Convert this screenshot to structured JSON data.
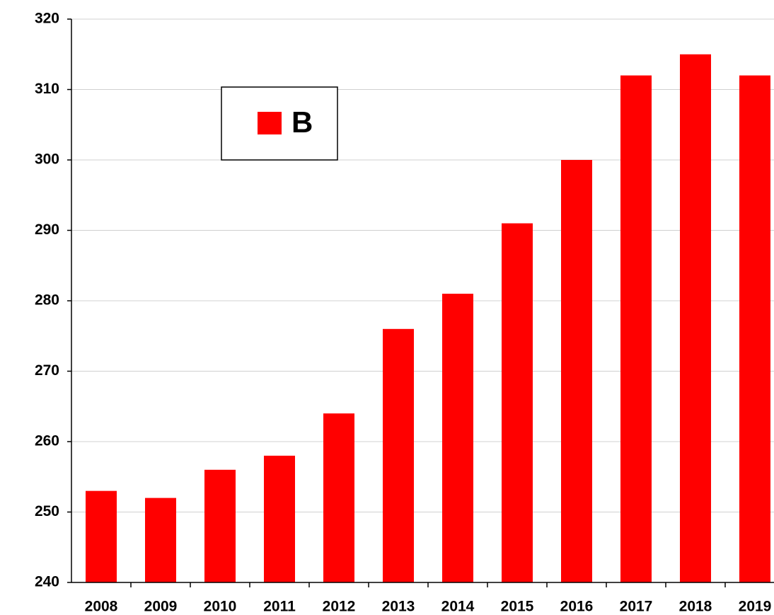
{
  "chart_data": {
    "type": "bar",
    "categories": [
      "2008",
      "2009",
      "2010",
      "2011",
      "2012",
      "2013",
      "2014",
      "2015",
      "2016",
      "2017",
      "2018",
      "2019"
    ],
    "series": [
      {
        "name": "B",
        "color": "#ff0000",
        "values": [
          253,
          252,
          256,
          258,
          264,
          276,
          281,
          291,
          300,
          312,
          315,
          312
        ]
      }
    ],
    "ylim": [
      240,
      320
    ],
    "yticks": [
      240,
      250,
      260,
      270,
      280,
      290,
      300,
      310,
      320
    ],
    "grid": true,
    "legend": "upper left"
  }
}
